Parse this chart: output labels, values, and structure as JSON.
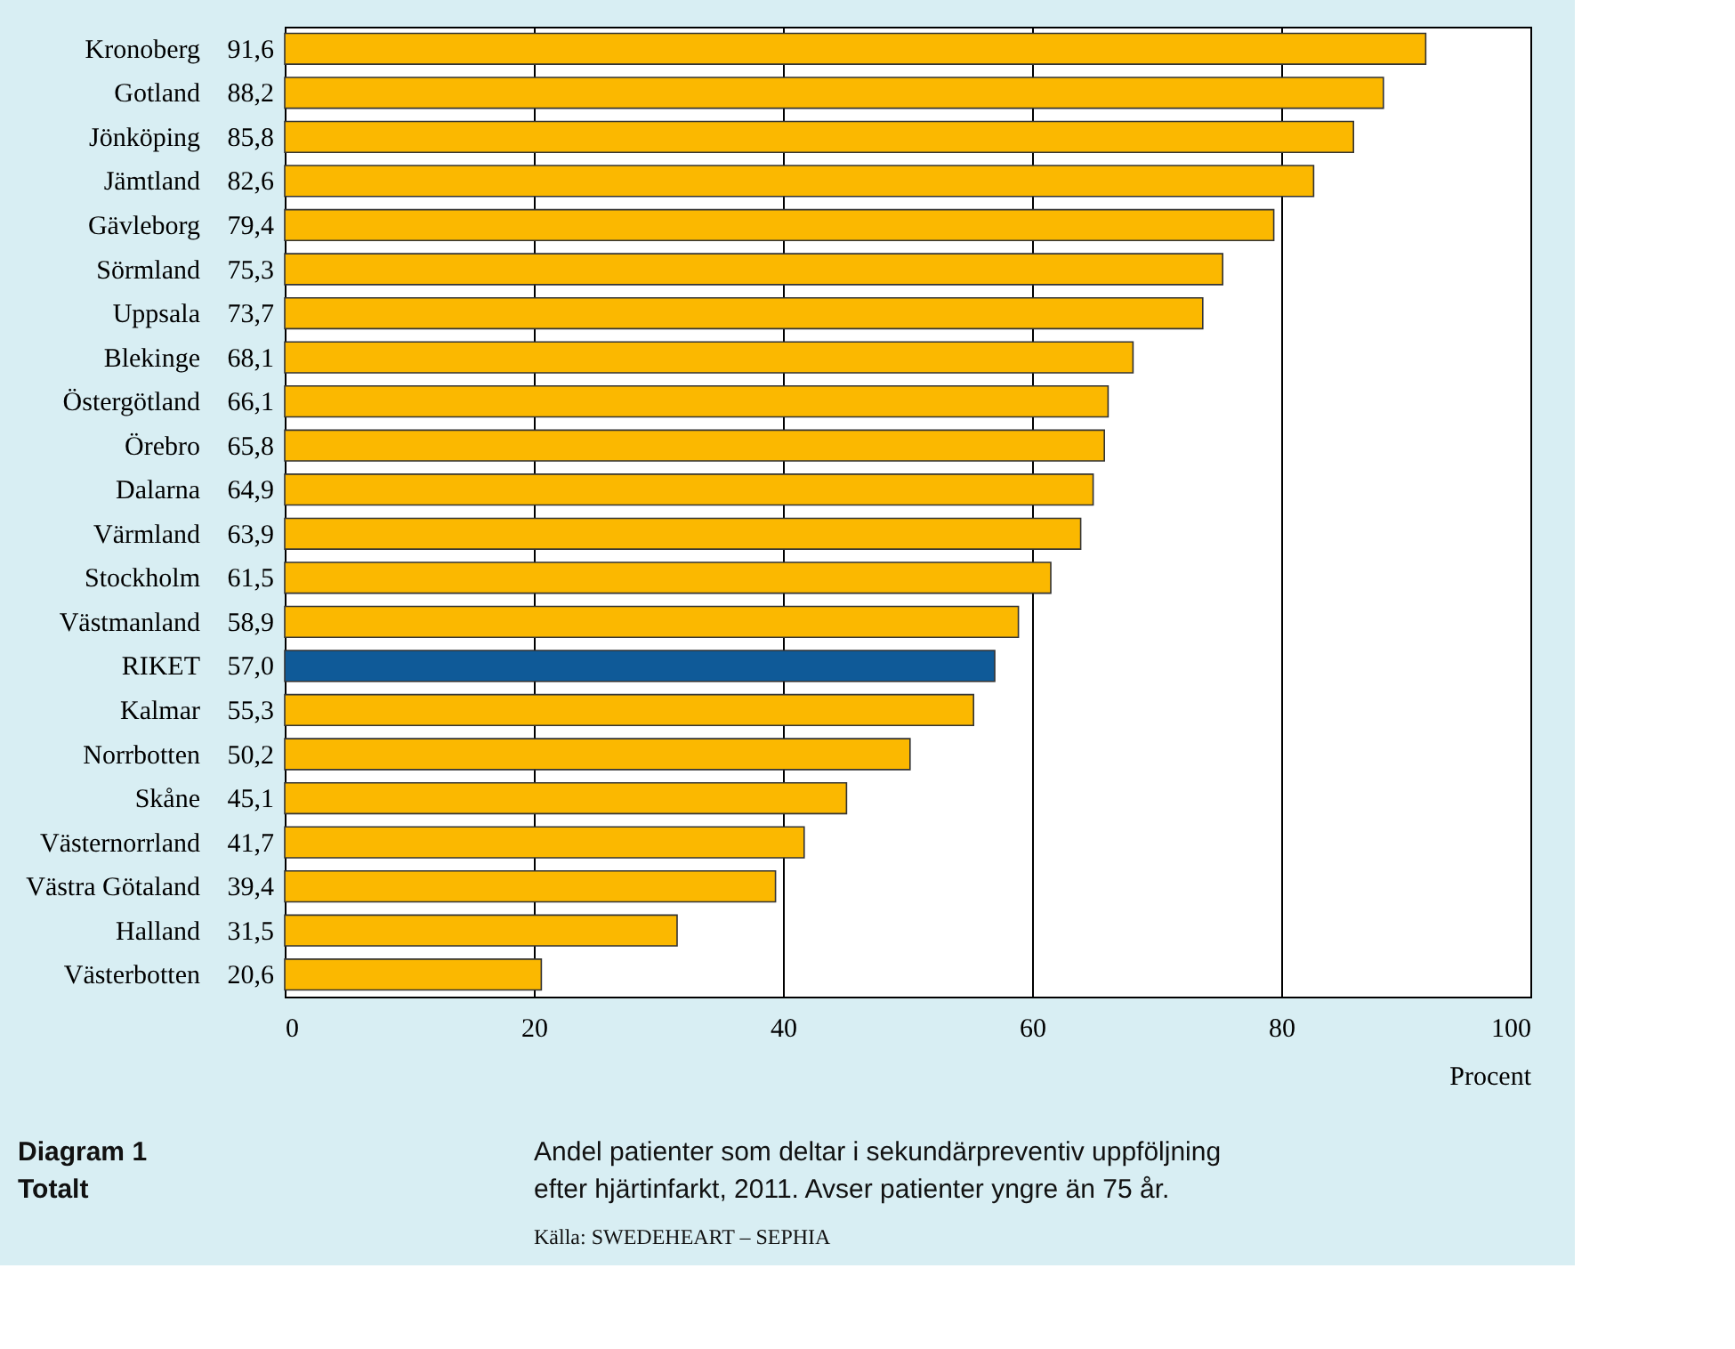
{
  "chart_data": {
    "type": "bar",
    "orientation": "horizontal",
    "xlabel": "Procent",
    "categories": [
      "Kronoberg",
      "Gotland",
      "Jönköping",
      "Jämtland",
      "Gävleborg",
      "Sörmland",
      "Uppsala",
      "Blekinge",
      "Östergötland",
      "Örebro",
      "Dalarna",
      "Värmland",
      "Stockholm",
      "Västmanland",
      "RIKET",
      "Kalmar",
      "Norrbotten",
      "Skåne",
      "Västernorrland",
      "Västra Götaland",
      "Halland",
      "Västerbotten"
    ],
    "values": [
      91.6,
      88.2,
      85.8,
      82.6,
      79.4,
      75.3,
      73.7,
      68.1,
      66.1,
      65.8,
      64.9,
      63.9,
      61.5,
      58.9,
      57.0,
      55.3,
      50.2,
      45.1,
      41.7,
      39.4,
      31.5,
      20.6
    ],
    "value_labels": [
      "91,6",
      "88,2",
      "85,8",
      "82,6",
      "79,4",
      "75,3",
      "73,7",
      "68,1",
      "66,1",
      "65,8",
      "64,9",
      "63,9",
      "61,5",
      "58,9",
      "57,0",
      "55,3",
      "50,2",
      "45,1",
      "41,7",
      "39,4",
      "31,5",
      "20,6"
    ],
    "colors": [
      "#fbb800",
      "#fbb800",
      "#fbb800",
      "#fbb800",
      "#fbb800",
      "#fbb800",
      "#fbb800",
      "#fbb800",
      "#fbb800",
      "#fbb800",
      "#fbb800",
      "#fbb800",
      "#fbb800",
      "#fbb800",
      "#0f5a98",
      "#fbb800",
      "#fbb800",
      "#fbb800",
      "#fbb800",
      "#fbb800",
      "#fbb800",
      "#fbb800"
    ],
    "xlim": [
      0,
      100
    ],
    "xticks": [
      0,
      20,
      40,
      60,
      80,
      100
    ],
    "grid": "x",
    "annotations": [
      "Diagram 1\nTotalt",
      "Andel patienter som deltar i sekundärpreventiv uppföljning\nefter hjärtinfarkt, 2011. Avser patienter yngre än 75 år.",
      "Källa: SWEDEHEART – SEPHIA"
    ]
  }
}
